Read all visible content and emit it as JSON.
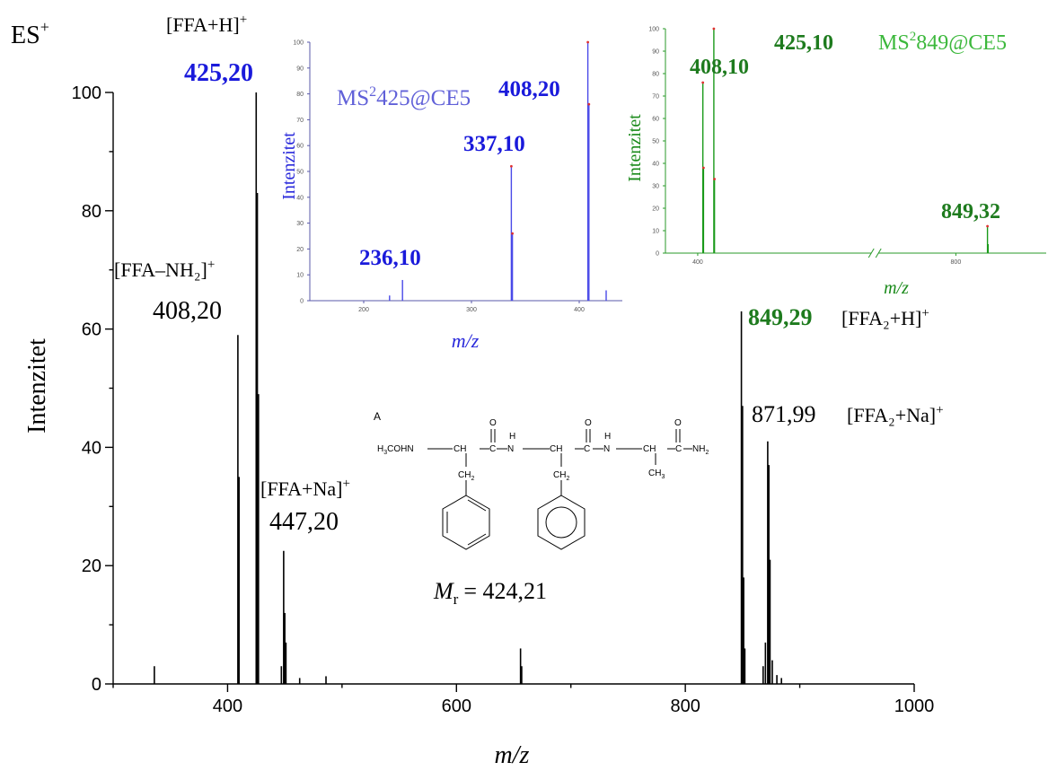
{
  "chart_data": [
    {
      "id": "main",
      "type": "bar",
      "title": "ES+",
      "xlabel": "m/z",
      "ylabel": "Intenzitet",
      "xlim": [
        300,
        1000
      ],
      "ylim": [
        0,
        100
      ],
      "xticks": [
        400,
        600,
        800,
        1000
      ],
      "yticks": [
        0,
        20,
        40,
        60,
        80,
        100
      ],
      "series_color": "#000000",
      "peaks": [
        {
          "x": 336,
          "y": 3
        },
        {
          "x": 409,
          "y": 59
        },
        {
          "x": 410,
          "y": 35
        },
        {
          "x": 425,
          "y": 100
        },
        {
          "x": 426,
          "y": 83
        },
        {
          "x": 427,
          "y": 49
        },
        {
          "x": 447,
          "y": 3
        },
        {
          "x": 449,
          "y": 22.5
        },
        {
          "x": 450,
          "y": 12
        },
        {
          "x": 451,
          "y": 7
        },
        {
          "x": 463,
          "y": 1
        },
        {
          "x": 486,
          "y": 1.3
        },
        {
          "x": 656,
          "y": 6
        },
        {
          "x": 657,
          "y": 3
        },
        {
          "x": 849,
          "y": 63
        },
        {
          "x": 850,
          "y": 47
        },
        {
          "x": 851,
          "y": 18
        },
        {
          "x": 852,
          "y": 6
        },
        {
          "x": 868,
          "y": 3
        },
        {
          "x": 870,
          "y": 7
        },
        {
          "x": 872,
          "y": 41
        },
        {
          "x": 873,
          "y": 37
        },
        {
          "x": 874,
          "y": 21
        },
        {
          "x": 876,
          "y": 4
        },
        {
          "x": 880,
          "y": 1.5
        },
        {
          "x": 884,
          "y": 1
        }
      ],
      "annotations": [
        {
          "ion": "[FFA+H]",
          "charge": "+",
          "value": "425,20",
          "color": "#1a1adb"
        },
        {
          "ion": "[FFA–NH₂]",
          "charge": "+",
          "value": "408,20",
          "color": "#000000"
        },
        {
          "ion": "[FFA+Na]",
          "charge": "+",
          "value": "447,20",
          "color": "#000000"
        },
        {
          "ion": "[FFA₂+H]",
          "charge": "+",
          "value": "849,29",
          "color": "#1e7b1e"
        },
        {
          "ion": "[FFA₂+Na]",
          "charge": "+",
          "value": "871,99",
          "color": "#000000"
        }
      ]
    },
    {
      "id": "inset-425",
      "type": "bar",
      "title": "MS²425@CE5",
      "title_parts": [
        "MS",
        "2",
        "425@CE5"
      ],
      "xlabel": "m/z",
      "ylabel": "Intenzitet",
      "xlim": [
        150,
        440
      ],
      "ylim": [
        0,
        100
      ],
      "xticks": [
        200,
        300,
        400
      ],
      "yticks": [
        0,
        10,
        20,
        30,
        40,
        50,
        60,
        70,
        80,
        90,
        100
      ],
      "series_color": "#4a4ae8",
      "peaks": [
        {
          "x": 224,
          "y": 2
        },
        {
          "x": 236,
          "y": 8
        },
        {
          "x": 337,
          "y": 52
        },
        {
          "x": 338,
          "y": 26
        },
        {
          "x": 408,
          "y": 100
        },
        {
          "x": 409,
          "y": 76
        },
        {
          "x": 425,
          "y": 4
        }
      ],
      "labels": [
        {
          "value": "408,20",
          "x": 408
        },
        {
          "value": "337,10",
          "x": 337
        },
        {
          "value": "236,10",
          "x": 236
        }
      ]
    },
    {
      "id": "inset-849",
      "type": "bar",
      "title": "MS²849@CE5",
      "title_parts": [
        "MS",
        "2",
        "849@CE5"
      ],
      "xlabel": "m/z",
      "ylabel": "Intenzitet",
      "xlim": [
        350,
        940
      ],
      "ylim": [
        0,
        100
      ],
      "xticks": [
        400,
        800
      ],
      "yticks": [
        0,
        10,
        20,
        30,
        40,
        50,
        60,
        70,
        80,
        90,
        100
      ],
      "axis_break": true,
      "series_color": "#1a9a1a",
      "peaks": [
        {
          "x": 408,
          "y": 76
        },
        {
          "x": 409,
          "y": 38
        },
        {
          "x": 425,
          "y": 100
        },
        {
          "x": 426,
          "y": 33
        },
        {
          "x": 849,
          "y": 12
        },
        {
          "x": 850,
          "y": 4
        }
      ],
      "labels": [
        {
          "value": "408,10",
          "x": 408
        },
        {
          "value": "425,10",
          "x": 425
        },
        {
          "value": "849,32",
          "x": 849
        }
      ]
    }
  ],
  "structure": {
    "label": "A",
    "formula": "H3COHN–CH–C–N–CH–C–N–CH–C–NH2",
    "mr_symbol": "M",
    "mr_subscript": "r",
    "mr_value": "= 424,21"
  }
}
